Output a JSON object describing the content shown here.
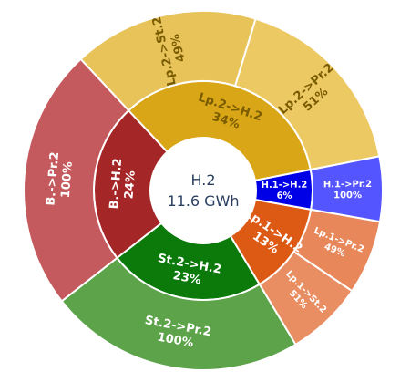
{
  "chart_data": {
    "type": "sunburst",
    "center": {
      "label": "H.2",
      "value": "11.6 GWh"
    },
    "inner_ring": [
      {
        "id": "lp2_h2",
        "label": "Lp.2->H.2",
        "percent": "34%",
        "start_deg": -43,
        "end_deg": 79,
        "color": "#d9a618",
        "text_color": "#7a5c00"
      },
      {
        "id": "h1_h2",
        "label": "H.1->H.2",
        "percent": "6%",
        "start_deg": 79,
        "end_deg": 100,
        "color": "#0000e6",
        "text_color": "#ffffff"
      },
      {
        "id": "lp1_h2",
        "label": "Lp.1->H.2",
        "percent": "13%",
        "start_deg": 100,
        "end_deg": 149,
        "color": "#dd5a14",
        "text_color": "#ffffff"
      },
      {
        "id": "st2_h2",
        "label": "St.2->H.2",
        "percent": "23%",
        "start_deg": 149,
        "end_deg": 232,
        "color": "#0b7a0b",
        "text_color": "#ffffff"
      },
      {
        "id": "b_h2",
        "label": "B.->H.2",
        "percent": "24%",
        "start_deg": 232,
        "end_deg": 317,
        "color": "#a52626",
        "text_color": "#ffffff"
      }
    ],
    "outer_ring": [
      {
        "id": "lp2_st2",
        "parent": "lp2_h2",
        "label": "Lp.2->St.2",
        "percent": "49%",
        "start_deg": -43,
        "end_deg": 17,
        "color": "#e8c35a",
        "text_color": "#7a5c00"
      },
      {
        "id": "lp2_pr2",
        "parent": "lp2_h2",
        "label": "Lp.2->Pr.2",
        "percent": "51%",
        "start_deg": 17,
        "end_deg": 79,
        "color": "#edc964",
        "text_color": "#7a5c00"
      },
      {
        "id": "h1_pr2",
        "parent": "h1_h2",
        "label": "H.1->Pr.2",
        "percent": "100%",
        "start_deg": 79,
        "end_deg": 100,
        "color": "#5555ff",
        "text_color": "#ffffff"
      },
      {
        "id": "lp1_pr2",
        "parent": "lp1_h2",
        "label": "Lp.1->Pr.2",
        "percent": "49%",
        "start_deg": 100,
        "end_deg": 124,
        "color": "#e8875a",
        "text_color": "#ffffff"
      },
      {
        "id": "lp1_st2",
        "parent": "lp1_h2",
        "label": "Lp.1->St.2",
        "percent": "51%",
        "start_deg": 124,
        "end_deg": 149,
        "color": "#e98e62",
        "text_color": "#ffffff"
      },
      {
        "id": "st2_pr2",
        "parent": "st2_h2",
        "label": "St.2->Pr.2",
        "percent": "100%",
        "start_deg": 149,
        "end_deg": 232,
        "color": "#5ca349",
        "text_color": "#ffffff"
      },
      {
        "id": "b_pr2",
        "parent": "b_h2",
        "label": "B.->Pr.2",
        "percent": "100%",
        "start_deg": 232,
        "end_deg": 317,
        "color": "#c55a5e",
        "text_color": "#ffffff"
      }
    ]
  }
}
